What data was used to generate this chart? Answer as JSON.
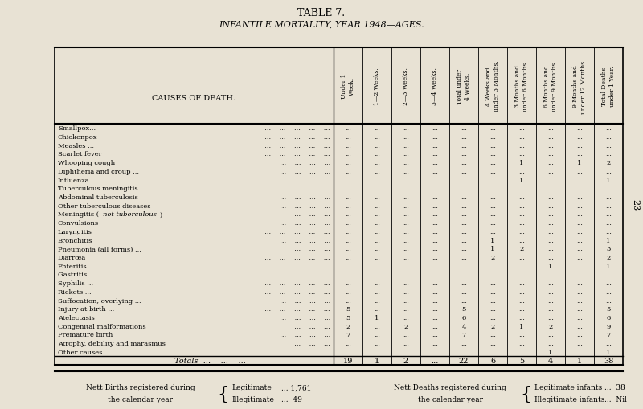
{
  "title1": "TABLE 7.",
  "title2": "INFANTILE MORTALITY, YEAR 1948—AGES.",
  "col_headers": [
    "Under 1\nWeek.",
    "1—2 Weeks.",
    "2—3 Weeks.",
    "3—4 Weeks.",
    "Total under\n4 Weeks.",
    "4 Weeks and\nunder 3 Months.",
    "3 Months and\nunder 6 Months.",
    "6 Months and\nunder 9 Months.",
    "9 Months and\nunder 12 Months.",
    "Total Deaths\nunder 1 Year."
  ],
  "causes": [
    "Smallpox...",
    "Chickenpox",
    "Measles ...",
    "Scarlet fever",
    "Whooping cough",
    "Diphtheria and croup ...",
    "Influenza",
    "Tuberculous meningitis",
    "Abdominal tuberculosis",
    "Other tuberculous diseases",
    "Meningitis (not tuberculous)",
    "Convulsions",
    "Laryngitis",
    "Bronchitis",
    "Pneumonia (all forms) ...",
    "Diarrœa",
    "Enteritis",
    "Gastritis ...",
    "Syphilis ...",
    "Rickets ...",
    "Suffocation, overlying ...",
    "Injury at birth ...",
    "Atelectasis",
    "Congenital malformations",
    "Premature birth",
    "Atrophy, debility and marasmus",
    "Other causes"
  ],
  "causes_italic": [
    false,
    false,
    false,
    false,
    false,
    false,
    false,
    false,
    false,
    false,
    true,
    false,
    false,
    false,
    false,
    false,
    false,
    false,
    false,
    false,
    false,
    false,
    false,
    false,
    false,
    false,
    false
  ],
  "cause_dots_count": [
    5,
    5,
    5,
    5,
    4,
    4,
    5,
    4,
    4,
    4,
    3,
    4,
    5,
    4,
    3,
    5,
    5,
    5,
    5,
    5,
    4,
    5,
    4,
    3,
    4,
    3,
    4
  ],
  "data": [
    [
      "...",
      "...",
      "...",
      "...",
      "...",
      "...",
      "...",
      "...",
      "...",
      "..."
    ],
    [
      "...",
      "...",
      "...",
      "...",
      "...",
      "...",
      "...",
      "...",
      "...",
      "..."
    ],
    [
      "...",
      "...",
      "...",
      "...",
      "...",
      "...",
      "...",
      "...",
      "...",
      "..."
    ],
    [
      "...",
      "...",
      "...",
      "...",
      "...",
      "...",
      "...",
      "...",
      "...",
      "..."
    ],
    [
      "...",
      "...",
      "...",
      "...",
      "...",
      "...",
      "1",
      "...",
      "1",
      "2"
    ],
    [
      "...",
      "...",
      "...",
      "...",
      "...",
      "...",
      "...",
      "...",
      "...",
      "..."
    ],
    [
      "...",
      "...",
      "...",
      "...",
      "...",
      "...",
      "1",
      "...",
      "...",
      "1"
    ],
    [
      "...",
      "...",
      "...",
      "...",
      "...",
      "...",
      "...",
      "...",
      "...",
      "..."
    ],
    [
      "...",
      "...",
      "...",
      "...",
      "...",
      "...",
      "...",
      "...",
      "...",
      "..."
    ],
    [
      "...",
      "...",
      "...",
      "...",
      "...",
      "...",
      "...",
      "...",
      "...",
      "..."
    ],
    [
      "...",
      "...",
      "...",
      "...",
      "...",
      "...",
      "...",
      "...",
      "...",
      "..."
    ],
    [
      "...",
      "...",
      "...",
      "...",
      "...",
      "...",
      "...",
      "...",
      "...",
      "..."
    ],
    [
      "...",
      "...",
      "...",
      "...",
      "...",
      "...",
      "...",
      "...",
      "...",
      "..."
    ],
    [
      "...",
      "...",
      "...",
      "...",
      "...",
      "1",
      "...",
      "...",
      "...",
      "1"
    ],
    [
      "...",
      "...",
      "...",
      "...",
      "...",
      "1",
      "2",
      "...",
      "...",
      "3"
    ],
    [
      "...",
      "...",
      "...",
      "...",
      "...",
      "2",
      "...",
      "...",
      "...",
      "2"
    ],
    [
      "...",
      "...",
      "...",
      "...",
      "...",
      "...",
      "...",
      "1",
      "...",
      "1"
    ],
    [
      "...",
      "...",
      "...",
      "...",
      "...",
      "...",
      "...",
      "...",
      "...",
      "..."
    ],
    [
      "...",
      "...",
      "...",
      "...",
      "...",
      "...",
      "...",
      "...",
      "...",
      "..."
    ],
    [
      "...",
      "...",
      "...",
      "...",
      "...",
      "...",
      "...",
      "...",
      "...",
      "..."
    ],
    [
      "...",
      "...",
      "...",
      "...",
      "...",
      "...",
      "...",
      "...",
      "...",
      "..."
    ],
    [
      "5",
      "...",
      "...",
      "...",
      "5",
      "...",
      "...",
      "...",
      "...",
      "5"
    ],
    [
      "5",
      "1",
      "...",
      "...",
      "6",
      "...",
      "...",
      "...",
      "...",
      "6"
    ],
    [
      "2",
      "...",
      "2",
      "...",
      "4",
      "2",
      "1",
      "2",
      "...",
      "9"
    ],
    [
      "7",
      "...",
      "...",
      "...",
      "7",
      "...",
      "...",
      "...",
      "...",
      "7"
    ],
    [
      "...",
      "...",
      "...",
      "...",
      "...",
      "...",
      "...",
      "...",
      "...",
      "..."
    ],
    [
      "...",
      "...",
      "...",
      "...",
      "...",
      "...",
      "...",
      "1",
      "...",
      "1"
    ]
  ],
  "totals": [
    "19",
    "1",
    "2",
    "...",
    "22",
    "6",
    "5",
    "4",
    "1",
    "38"
  ],
  "footer_left1": "Nett Births registered during",
  "footer_left2": "the calendar year",
  "footer_births_leg": "Legitimate",
  "footer_births_leg_val": "... 1,761",
  "footer_births_illeg": "Illegitimate",
  "footer_births_illeg_val": "...  49",
  "footer_right1": "Nett Deaths registered during",
  "footer_right2": "the calendar year",
  "footer_deaths_leg": "Legitimate infants",
  "footer_deaths_leg_val": "...  38",
  "footer_deaths_illeg": "Illegitimate infants",
  "footer_deaths_illeg_val": "...  Nil",
  "bg_color": "#e8e2d4",
  "page_number": "23"
}
